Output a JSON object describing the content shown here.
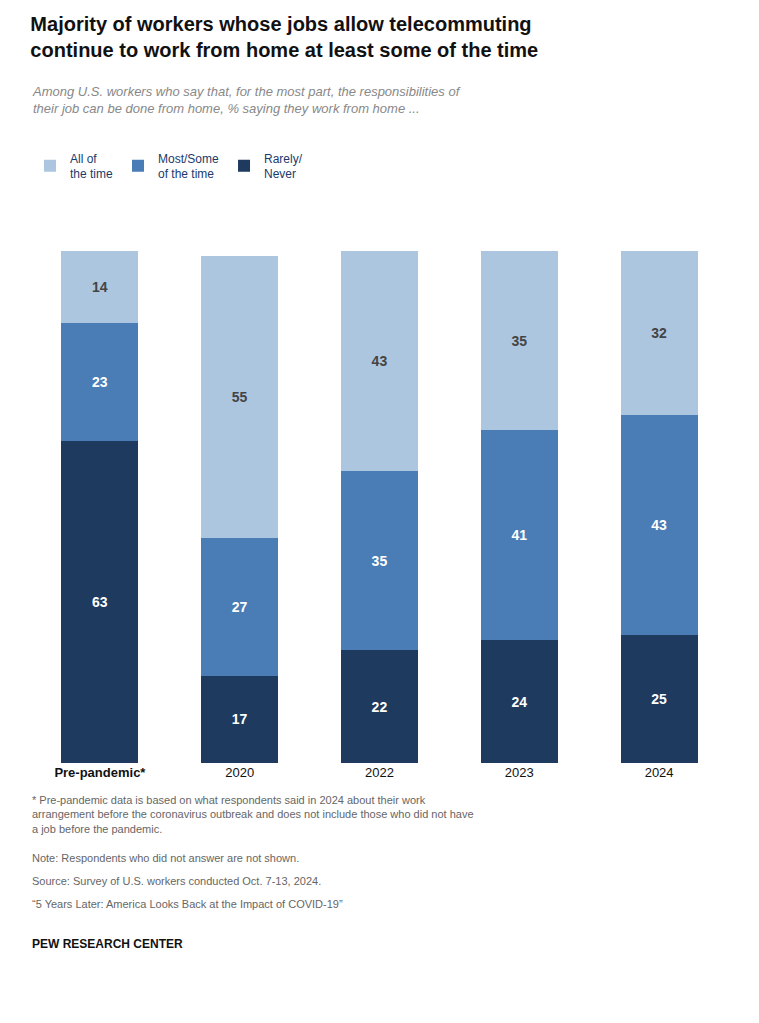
{
  "chart_data": {
    "type": "bar",
    "stacked": true,
    "title": "Majority of workers whose jobs allow telecommuting\ncontinue to work from home at least some of the time",
    "subtitle": "Among U.S. workers who say that, for the most part, the responsibilities of\ntheir job can be done from home, % saying they work from home ...",
    "categories": [
      "Pre-pandemic*",
      "2020",
      "2022",
      "2023",
      "2024"
    ],
    "series": [
      {
        "name": "Rarely/\nNever",
        "color": "#1e3a5f",
        "values": [
          63,
          17,
          22,
          24,
          25
        ]
      },
      {
        "name": "Most/Some\nof the time",
        "color": "#4a7db5",
        "values": [
          23,
          27,
          35,
          41,
          43
        ]
      },
      {
        "name": "All of\nthe time",
        "color": "#adc6e0",
        "values": [
          14,
          55,
          43,
          35,
          32
        ]
      }
    ],
    "ylim": [
      0,
      110
    ],
    "grid": false,
    "data_labels": true,
    "tick_labels": "x",
    "annotations": [
      "* Pre-pandemic data is based on what respondents said in 2024 about their work\narrangement before the coronavirus outbreak and does not include those who did not have\na job before the pandemic.",
      "Note: Respondents who did not answer are not shown.",
      "Source: Survey of U.S. workers conducted Oct. 7-13, 2024.",
      "“5 Years Later: America Looks Back at the Impact of COVID-19”",
      "PEW RESEARCH CENTER"
    ]
  }
}
